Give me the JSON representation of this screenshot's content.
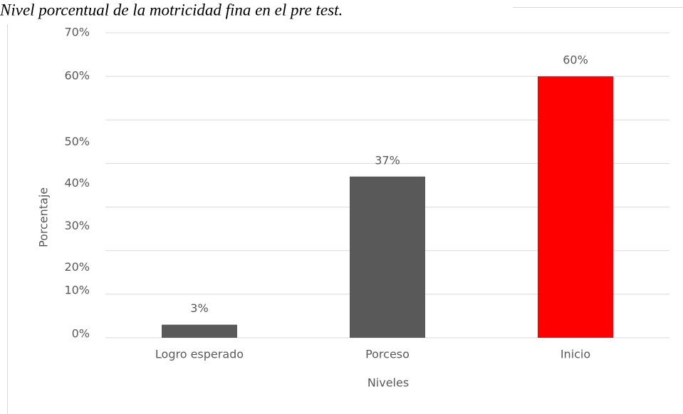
{
  "chart_data": {
    "type": "bar",
    "title": "Nivel porcentual  de la motricidad fina en el pre test.",
    "categories": [
      "Logro esperado",
      "Porceso",
      "Inicio"
    ],
    "values": [
      3,
      37,
      60
    ],
    "value_labels": [
      "3%",
      "37%",
      "60%"
    ],
    "colors": [
      "#595959",
      "#595959",
      "#ff0000"
    ],
    "xlabel": "Niveles",
    "ylabel": "Porcentaje",
    "ylim": [
      0,
      70
    ],
    "yticks": [
      {
        "value": 0,
        "label": "0%"
      },
      {
        "value": 10,
        "label": "10%"
      },
      {
        "value": 20,
        "label": "20%"
      },
      {
        "value": 30,
        "label": "30%"
      },
      {
        "value": 40,
        "label": "40%"
      },
      {
        "value": 50,
        "label": "50%"
      },
      {
        "value": 60,
        "label": "60%"
      },
      {
        "value": 70,
        "label": "70%"
      }
    ],
    "grid": true
  }
}
